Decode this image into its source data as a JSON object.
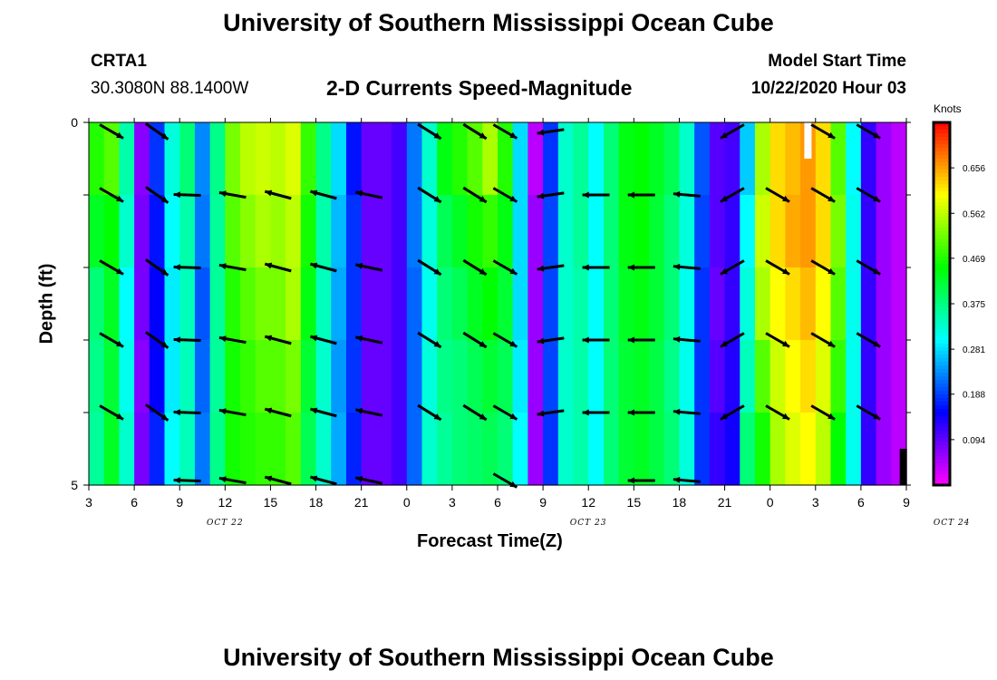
{
  "header": {
    "title": "University of Southern Mississippi Ocean Cube",
    "station_id": "CRTA1",
    "station_coords": "30.3080N 88.1400W",
    "chart_subtitle": "2-D Currents Speed-Magnitude",
    "model_start_label": "Model Start Time",
    "model_start_value": "10/22/2020 Hour 03"
  },
  "footer": {
    "title": "University of Southern Mississippi Ocean Cube"
  },
  "colorbar": {
    "unit_label": "Knots",
    "ticks": [
      "0.656",
      "0.562",
      "0.469",
      "0.375",
      "0.281",
      "0.188",
      "0.094"
    ],
    "tick_values": [
      0.656,
      0.562,
      0.469,
      0.375,
      0.281,
      0.188,
      0.094
    ],
    "range": [
      0.0,
      0.75
    ]
  },
  "chart_data": {
    "type": "heatmap",
    "title": "2-D Currents Speed-Magnitude",
    "xlabel": "Forecast Time(Z)",
    "ylabel": "Depth (ft)",
    "y_ticks": [
      "0",
      "5"
    ],
    "ylim": [
      0,
      5
    ],
    "x_tick_labels": [
      "3",
      "6",
      "9",
      "12",
      "15",
      "18",
      "21",
      "0",
      "3",
      "6",
      "9",
      "12",
      "15",
      "18",
      "21",
      "0",
      "3",
      "6",
      "9"
    ],
    "date_labels": [
      {
        "text": "OCT 22",
        "hour": 12
      },
      {
        "text": "OCT 23",
        "hour": 36
      },
      {
        "text": "OCT 24",
        "hour": 60
      }
    ],
    "xlim_hours": [
      3,
      57
    ],
    "columns": [
      {
        "h": 3.5,
        "v": [
          0.47,
          0.43,
          0.38,
          0.37,
          0.36
        ]
      },
      {
        "h": 4.5,
        "v": [
          0.5,
          0.45,
          0.43,
          0.42,
          0.43
        ]
      },
      {
        "h": 5.5,
        "v": [
          0.35,
          0.33,
          0.3,
          0.31,
          0.33
        ]
      },
      {
        "h": 6.5,
        "v": [
          0.07,
          0.08,
          0.08,
          0.07,
          0.08
        ]
      },
      {
        "h": 7.5,
        "v": [
          0.18,
          0.16,
          0.15,
          0.15,
          0.17
        ]
      },
      {
        "h": 8.5,
        "v": [
          0.32,
          0.3,
          0.29,
          0.29,
          0.3
        ]
      },
      {
        "h": 9.5,
        "v": [
          0.38,
          0.35,
          0.34,
          0.34,
          0.34
        ]
      },
      {
        "h": 10.5,
        "v": [
          0.23,
          0.22,
          0.2,
          0.21,
          0.22
        ]
      },
      {
        "h": 11.5,
        "v": [
          0.37,
          0.36,
          0.36,
          0.36,
          0.37
        ]
      },
      {
        "h": 12.5,
        "v": [
          0.52,
          0.5,
          0.47,
          0.46,
          0.46
        ]
      },
      {
        "h": 13.5,
        "v": [
          0.56,
          0.53,
          0.5,
          0.48,
          0.47
        ]
      },
      {
        "h": 14.5,
        "v": [
          0.57,
          0.55,
          0.52,
          0.5,
          0.48
        ]
      },
      {
        "h": 15.5,
        "v": [
          0.56,
          0.54,
          0.52,
          0.5,
          0.48
        ]
      },
      {
        "h": 16.5,
        "v": [
          0.58,
          0.56,
          0.55,
          0.52,
          0.5
        ]
      },
      {
        "h": 17.5,
        "v": [
          0.48,
          0.46,
          0.44,
          0.42,
          0.4
        ]
      },
      {
        "h": 18.5,
        "v": [
          0.37,
          0.35,
          0.34,
          0.33,
          0.33
        ]
      },
      {
        "h": 19.5,
        "v": [
          0.28,
          0.26,
          0.25,
          0.24,
          0.25
        ]
      },
      {
        "h": 20.5,
        "v": [
          0.16,
          0.18,
          0.18,
          0.18,
          0.17
        ]
      },
      {
        "h": 21.5,
        "v": [
          0.09,
          0.09,
          0.09,
          0.09,
          0.09
        ]
      },
      {
        "h": 22.5,
        "v": [
          0.09,
          0.09,
          0.09,
          0.09,
          0.09
        ]
      },
      {
        "h": 23.5,
        "v": [
          0.11,
          0.11,
          0.11,
          0.11,
          0.11
        ]
      },
      {
        "h": 24.5,
        "v": [
          0.22,
          0.22,
          0.21,
          0.21,
          0.21
        ]
      },
      {
        "h": 25.5,
        "v": [
          0.33,
          0.32,
          0.31,
          0.32,
          0.33
        ]
      },
      {
        "h": 26.5,
        "v": [
          0.44,
          0.4,
          0.38,
          0.37,
          0.36
        ]
      },
      {
        "h": 27.5,
        "v": [
          0.47,
          0.43,
          0.4,
          0.38,
          0.38
        ]
      },
      {
        "h": 28.5,
        "v": [
          0.5,
          0.46,
          0.43,
          0.4,
          0.39
        ]
      },
      {
        "h": 29.5,
        "v": [
          0.55,
          0.48,
          0.45,
          0.42,
          0.4
        ]
      },
      {
        "h": 30.5,
        "v": [
          0.47,
          0.44,
          0.42,
          0.4,
          0.38
        ]
      },
      {
        "h": 31.5,
        "v": [
          0.28,
          0.28,
          0.28,
          0.29,
          0.3
        ]
      },
      {
        "h": 32.5,
        "v": [
          0.04,
          0.06,
          0.06,
          0.06,
          0.06
        ]
      },
      {
        "h": 33.5,
        "v": [
          0.18,
          0.19,
          0.19,
          0.19,
          0.18
        ]
      },
      {
        "h": 34.5,
        "v": [
          0.33,
          0.33,
          0.33,
          0.33,
          0.33
        ]
      },
      {
        "h": 35.5,
        "v": [
          0.36,
          0.36,
          0.35,
          0.35,
          0.35
        ]
      },
      {
        "h": 36.5,
        "v": [
          0.3,
          0.3,
          0.3,
          0.3,
          0.3
        ]
      },
      {
        "h": 37.5,
        "v": [
          0.38,
          0.38,
          0.38,
          0.38,
          0.38
        ]
      },
      {
        "h": 38.5,
        "v": [
          0.44,
          0.44,
          0.43,
          0.42,
          0.42
        ]
      },
      {
        "h": 39.5,
        "v": [
          0.45,
          0.45,
          0.44,
          0.43,
          0.43
        ]
      },
      {
        "h": 40.5,
        "v": [
          0.43,
          0.42,
          0.42,
          0.41,
          0.41
        ]
      },
      {
        "h": 41.5,
        "v": [
          0.4,
          0.38,
          0.38,
          0.37,
          0.38
        ]
      },
      {
        "h": 42.5,
        "v": [
          0.33,
          0.32,
          0.31,
          0.31,
          0.32
        ]
      },
      {
        "h": 43.5,
        "v": [
          0.2,
          0.19,
          0.18,
          0.18,
          0.18
        ]
      },
      {
        "h": 44.5,
        "v": [
          0.1,
          0.1,
          0.09,
          0.1,
          0.12
        ]
      },
      {
        "h": 45.5,
        "v": [
          0.11,
          0.12,
          0.12,
          0.13,
          0.14
        ]
      },
      {
        "h": 46.5,
        "v": [
          0.27,
          0.3,
          0.32,
          0.34,
          0.38
        ]
      },
      {
        "h": 47.5,
        "v": [
          0.55,
          0.57,
          0.55,
          0.5,
          0.46
        ]
      },
      {
        "h": 48.5,
        "v": [
          0.62,
          0.62,
          0.6,
          0.57,
          0.55
        ]
      },
      {
        "h": 49.5,
        "v": [
          0.64,
          0.65,
          0.62,
          0.6,
          0.58
        ]
      },
      {
        "h": 50.5,
        "v": [
          0.66,
          0.66,
          0.64,
          0.62,
          0.6
        ]
      },
      {
        "h": 51.5,
        "v": [
          0.62,
          0.62,
          0.6,
          0.58,
          0.56
        ]
      },
      {
        "h": 52.5,
        "v": [
          0.5,
          0.52,
          0.5,
          0.48,
          0.45
        ]
      },
      {
        "h": 53.5,
        "v": [
          0.3,
          0.31,
          0.31,
          0.31,
          0.31
        ]
      },
      {
        "h": 54.5,
        "v": [
          0.12,
          0.12,
          0.12,
          0.12,
          0.12
        ]
      },
      {
        "h": 55.5,
        "v": [
          0.06,
          0.06,
          0.06,
          0.06,
          0.06
        ]
      },
      {
        "h": 56.5,
        "v": [
          0.04,
          0.04,
          0.04,
          0.04,
          0.04
        ]
      }
    ],
    "vectors": [
      {
        "hour": 4.5,
        "depths": [
          0,
          1,
          2,
          3,
          4
        ],
        "dir": -30
      },
      {
        "hour": 7.5,
        "depths": [
          0,
          1,
          2,
          3,
          4
        ],
        "dir": -35
      },
      {
        "hour": 9.5,
        "depths": [
          1,
          2,
          3,
          4,
          5
        ],
        "dir": 178
      },
      {
        "hour": 12.5,
        "depths": [
          1,
          2,
          3,
          4,
          5
        ],
        "dir": 170
      },
      {
        "hour": 15.5,
        "depths": [
          1,
          2,
          3,
          4,
          5
        ],
        "dir": 165
      },
      {
        "hour": 18.5,
        "depths": [
          1,
          2,
          3,
          4,
          5
        ],
        "dir": 165
      },
      {
        "hour": 21.5,
        "depths": [
          1,
          2,
          3,
          4,
          5
        ],
        "dir": 168
      },
      {
        "hour": 25.5,
        "depths": [
          0,
          1,
          2,
          3,
          4
        ],
        "dir": -32
      },
      {
        "hour": 28.5,
        "depths": [
          0,
          1,
          2,
          3,
          4
        ],
        "dir": -32
      },
      {
        "hour": 30.5,
        "depths": [
          0,
          1,
          2,
          3,
          4,
          5
        ],
        "dir": -30
      },
      {
        "hour": 33.5,
        "depths": [
          0,
          1,
          2,
          3,
          4
        ],
        "dir": 188
      },
      {
        "hour": 36.5,
        "depths": [
          1,
          2,
          3,
          4
        ],
        "dir": 180
      },
      {
        "hour": 39.5,
        "depths": [
          1,
          2,
          3,
          4,
          5
        ],
        "dir": 180
      },
      {
        "hour": 42.5,
        "depths": [
          1,
          2,
          3,
          4,
          5
        ],
        "dir": 175
      },
      {
        "hour": 45.5,
        "depths": [
          0,
          1,
          2,
          3,
          4
        ],
        "dir": 210
      },
      {
        "hour": 48.5,
        "depths": [
          1,
          2,
          3,
          4
        ],
        "dir": -30
      },
      {
        "hour": 51.5,
        "depths": [
          0,
          1,
          2,
          3,
          4
        ],
        "dir": -30
      },
      {
        "hour": 54.5,
        "depths": [
          0,
          1,
          2,
          3,
          4
        ],
        "dir": -30
      }
    ],
    "markers": [
      {
        "color": "#ffffff",
        "hour": 50.5,
        "depth_from": 0.0,
        "depth_to": 0.5
      },
      {
        "color": "#000000",
        "hour": 56.8,
        "depth_from": 4.5,
        "depth_to": 5.0
      }
    ]
  }
}
